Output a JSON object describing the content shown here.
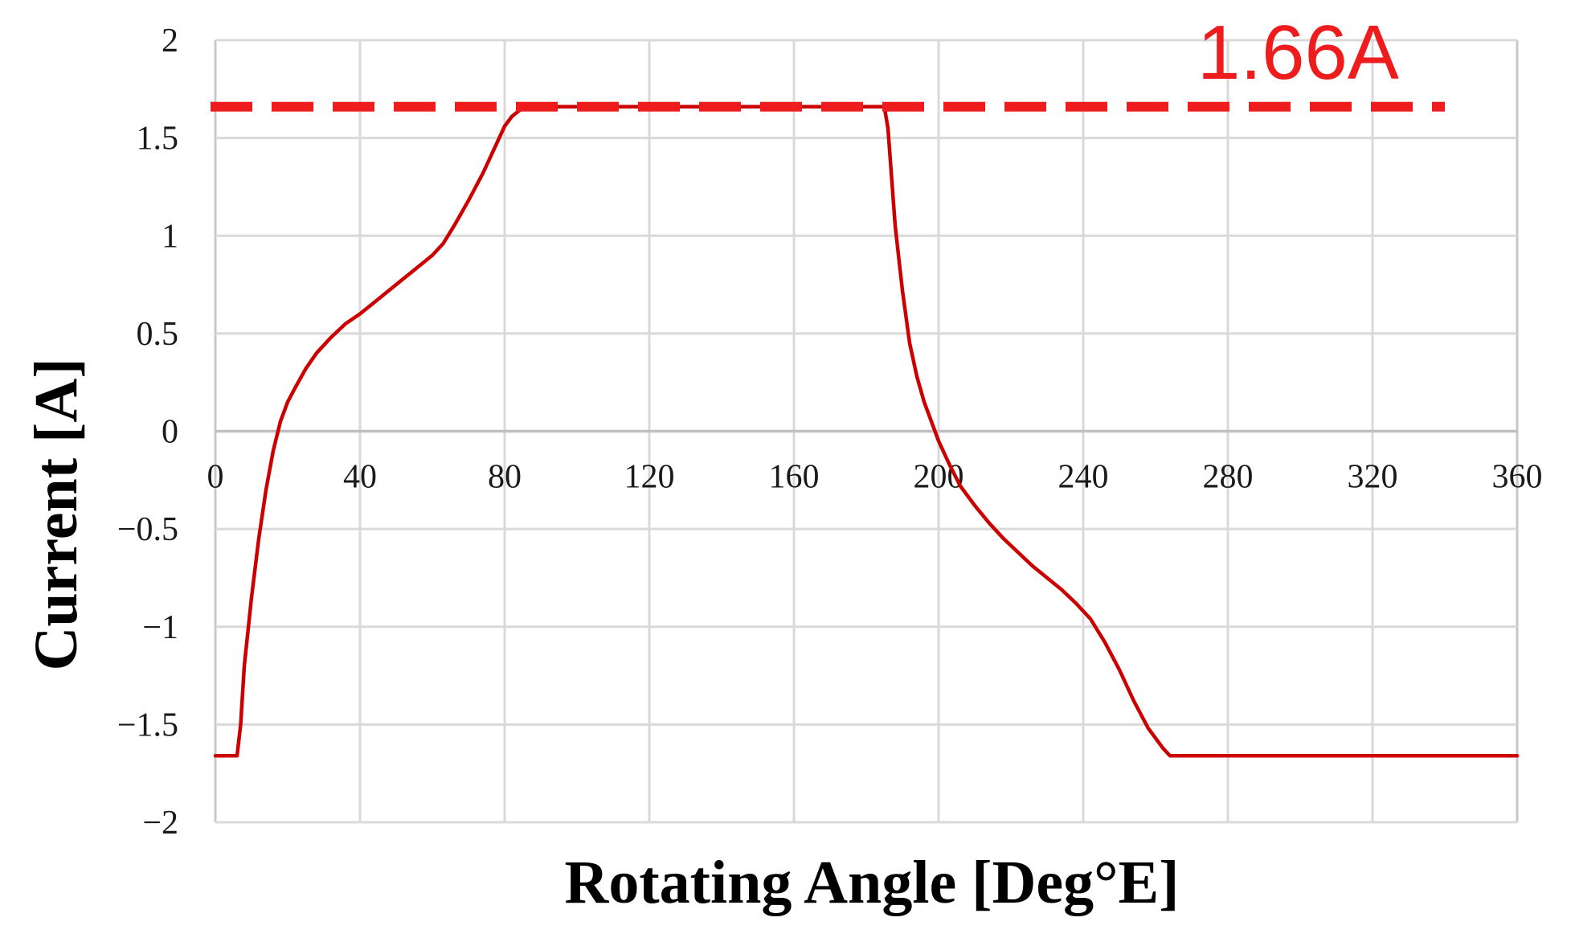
{
  "chart_data": {
    "type": "line",
    "title": "",
    "xlabel": "Rotating Angle [Deg°E]",
    "ylabel": "Current [A]",
    "xlim": [
      0,
      360
    ],
    "ylim": [
      -2,
      2
    ],
    "x_ticks": [
      0,
      40,
      80,
      120,
      160,
      200,
      240,
      280,
      320,
      360
    ],
    "x_tick_labels": [
      "0",
      "40",
      "80",
      "120",
      "160",
      "200",
      "240",
      "280",
      "320",
      "360"
    ],
    "y_ticks": [
      2,
      1.5,
      1,
      0.5,
      0,
      -0.5,
      -1,
      -1.5,
      -2
    ],
    "y_tick_labels": [
      "2",
      "1.5",
      "1",
      "0.5",
      "0",
      "−0.5",
      "−1",
      "−1.5",
      "−2"
    ],
    "grid": true,
    "line_color": "#cc0000",
    "series": [
      {
        "x": [
          0,
          6,
          7,
          8,
          10,
          12,
          14,
          16,
          18,
          20,
          22,
          25,
          28,
          32,
          36,
          40,
          44,
          48,
          52,
          56,
          60,
          63,
          66,
          70,
          74,
          78,
          80,
          82,
          84,
          86,
          100,
          140,
          180,
          185,
          186,
          187,
          188,
          190,
          192,
          194,
          196,
          198,
          200,
          203,
          206,
          210,
          214,
          218,
          222,
          226,
          230,
          234,
          238,
          242,
          246,
          250,
          254,
          258,
          262,
          264,
          280,
          320,
          360
        ],
        "y": [
          -1.66,
          -1.66,
          -1.5,
          -1.2,
          -0.85,
          -0.55,
          -0.3,
          -0.1,
          0.05,
          0.15,
          0.22,
          0.32,
          0.4,
          0.48,
          0.55,
          0.6,
          0.66,
          0.72,
          0.78,
          0.84,
          0.9,
          0.96,
          1.05,
          1.18,
          1.32,
          1.48,
          1.56,
          1.61,
          1.64,
          1.66,
          1.66,
          1.66,
          1.66,
          1.66,
          1.55,
          1.3,
          1.05,
          0.72,
          0.45,
          0.28,
          0.15,
          0.05,
          -0.05,
          -0.17,
          -0.28,
          -0.38,
          -0.47,
          -0.55,
          -0.62,
          -0.69,
          -0.75,
          -0.81,
          -0.88,
          -0.96,
          -1.08,
          -1.22,
          -1.38,
          -1.52,
          -1.62,
          -1.66,
          -1.66,
          -1.66,
          -1.66
        ]
      }
    ],
    "reference_line": {
      "y": 1.66,
      "style": "dashed",
      "color": "#ee1c1c",
      "label": "1.66A",
      "x_range": [
        0,
        340
      ]
    }
  }
}
